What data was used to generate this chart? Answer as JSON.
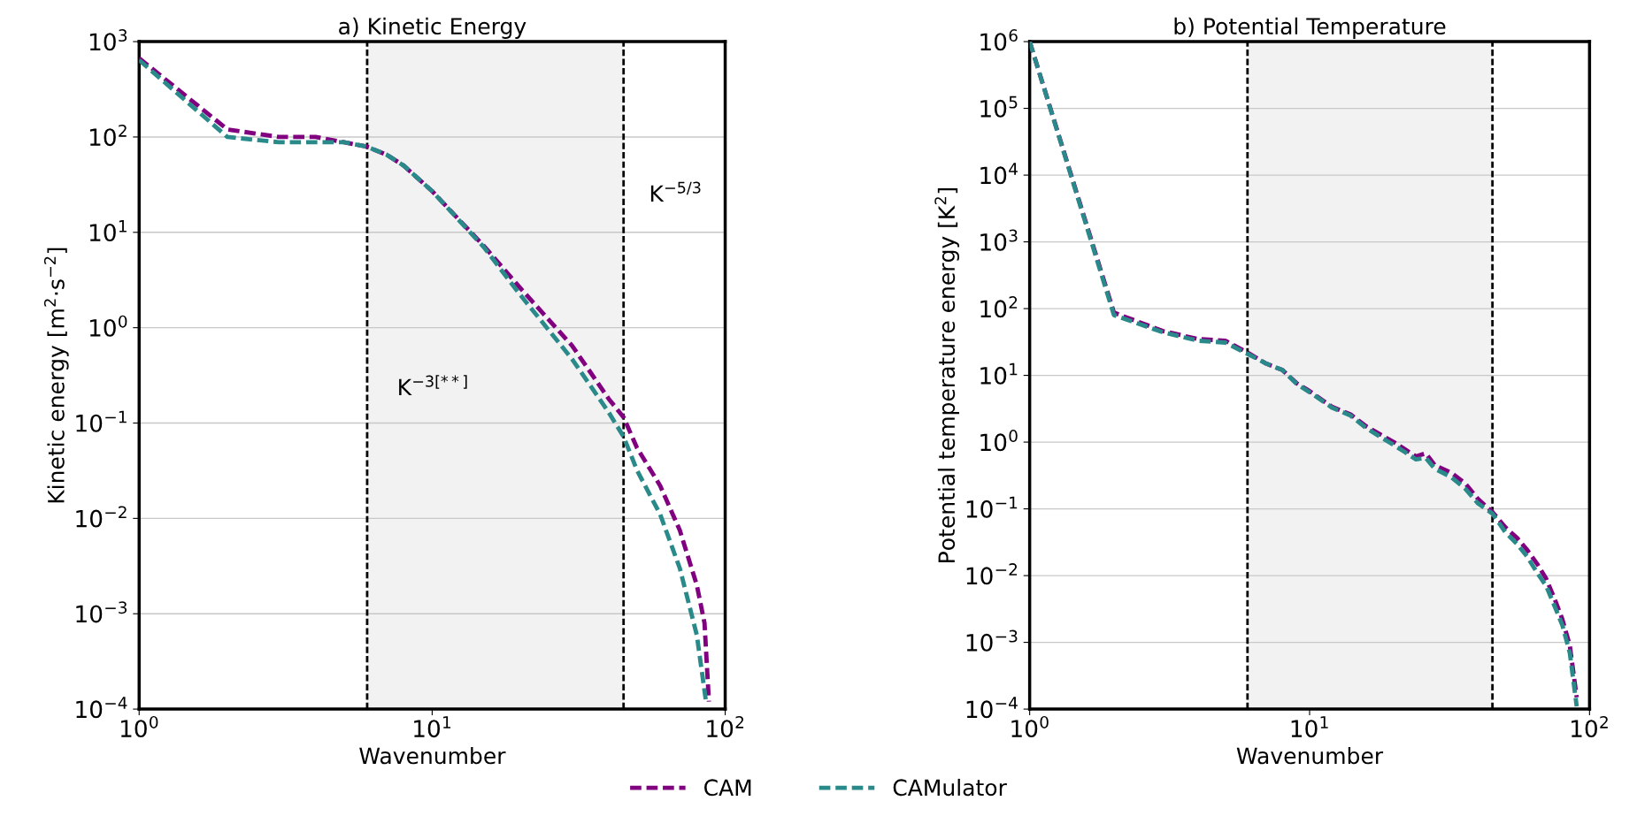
{
  "chart_data": [
    {
      "type": "line",
      "title": "a) Kinetic Energy",
      "xlabel": "Wavenumber",
      "ylabel": "Kinetic energy [m$^{2}$·s$^{−2}$]",
      "log": "xy",
      "grid": "y",
      "legend": "bottom",
      "line_style": "dashed",
      "marker": "none",
      "xlim": [
        1,
        100
      ],
      "xticks": [
        {
          "value": 1,
          "label": "10$^{0}$"
        },
        {
          "value": 10,
          "label": "10$^{1}$"
        },
        {
          "value": 100,
          "label": "10$^{2}$"
        }
      ],
      "ylim": [
        0.0001,
        1000
      ],
      "yticks": [
        {
          "value": 0.0001,
          "label": "10$^{−4}$"
        },
        {
          "value": 0.001,
          "label": "10$^{−3}$"
        },
        {
          "value": 0.01,
          "label": "10$^{−2}$"
        },
        {
          "value": 0.1,
          "label": "10$^{−1}$"
        },
        {
          "value": 1,
          "label": "10$^{0}$"
        },
        {
          "value": 10,
          "label": "10$^{1}$"
        },
        {
          "value": 100,
          "label": "10$^{2}$"
        },
        {
          "value": 1000,
          "label": "10$^{3}$"
        }
      ],
      "series": [
        {
          "name": "CAM",
          "color": "#800080",
          "x": [
            1,
            2,
            3,
            4,
            5,
            6,
            7,
            8,
            10,
            15,
            20,
            30,
            40,
            45,
            50,
            60,
            70,
            80,
            85,
            88
          ],
          "values": [
            670,
            120,
            100,
            100,
            88,
            79,
            65,
            50,
            27,
            7.2,
            2.6,
            0.65,
            0.18,
            0.115,
            0.055,
            0.022,
            0.0075,
            0.002,
            0.0008,
            0.00012
          ]
        },
        {
          "name": "CAMulator",
          "color": "#2a8a8a",
          "x": [
            1,
            2,
            3,
            4,
            5,
            6,
            7,
            8,
            10,
            15,
            20,
            30,
            40,
            45,
            50,
            60,
            70,
            80,
            86
          ],
          "values": [
            640,
            100,
            88,
            88,
            88,
            79,
            65,
            50,
            27,
            7.0,
            2.2,
            0.47,
            0.13,
            0.072,
            0.032,
            0.011,
            0.003,
            0.0006,
            0.00012
          ]
        }
      ],
      "bands": [
        {
          "axis": "x",
          "from": 6,
          "to": 45,
          "color": "#f2f2f2"
        }
      ],
      "ref_lines": [
        {
          "axis": "x",
          "value": 6,
          "color": "#000000",
          "line_style": "dashed"
        },
        {
          "axis": "x",
          "value": 45,
          "color": "#000000",
          "line_style": "dashed"
        }
      ],
      "annotations": [
        "K$^{−3[**]}$",
        "K$^{−5/3}$"
      ]
    },
    {
      "type": "line",
      "title": "b) Potential Temperature",
      "xlabel": "Wavenumber",
      "ylabel": "Potential temperature energy [K$^{2}$]",
      "log": "xy",
      "grid": "y",
      "line_style": "dashed",
      "marker": "none",
      "xlim": [
        1,
        100
      ],
      "xticks": [
        {
          "value": 1,
          "label": "10$^{0}$"
        },
        {
          "value": 10,
          "label": "10$^{1}$"
        },
        {
          "value": 100,
          "label": "10$^{2}$"
        }
      ],
      "ylim": [
        0.0001,
        1000000
      ],
      "yticks": [
        {
          "value": 0.0001,
          "label": "10$^{−4}$"
        },
        {
          "value": 0.001,
          "label": "10$^{−3}$"
        },
        {
          "value": 0.01,
          "label": "10$^{−2}$"
        },
        {
          "value": 0.1,
          "label": "10$^{−1}$"
        },
        {
          "value": 1,
          "label": "10$^{0}$"
        },
        {
          "value": 10,
          "label": "10$^{1}$"
        },
        {
          "value": 100,
          "label": "10$^{2}$"
        },
        {
          "value": 1000,
          "label": "10$^{3}$"
        },
        {
          "value": 10000,
          "label": "10$^{4}$"
        },
        {
          "value": 100000,
          "label": "10$^{5}$"
        },
        {
          "value": 1000000,
          "label": "10$^{6}$"
        }
      ],
      "series": [
        {
          "name": "CAM",
          "color": "#800080",
          "x": [
            1,
            2,
            3,
            4,
            5,
            6,
            7,
            8,
            9,
            10,
            12,
            14,
            16,
            20,
            22,
            24,
            26,
            28,
            32,
            36,
            40,
            45,
            50,
            55,
            60,
            65,
            70,
            75,
            80,
            85,
            90
          ],
          "values": [
            1000000,
            87,
            46,
            35,
            33,
            22,
            15,
            12,
            7.6,
            5.8,
            3.4,
            2.6,
            1.7,
            1.0,
            0.77,
            0.61,
            0.68,
            0.45,
            0.35,
            0.24,
            0.14,
            0.09,
            0.053,
            0.037,
            0.024,
            0.015,
            0.009,
            0.0045,
            0.0022,
            0.0009,
            0.00015
          ]
        },
        {
          "name": "CAMulator",
          "color": "#2a8a8a",
          "x": [
            1,
            2,
            3,
            4,
            5,
            6,
            7,
            8,
            9,
            10,
            12,
            14,
            16,
            20,
            22,
            24,
            26,
            28,
            32,
            36,
            40,
            45,
            50,
            55,
            60,
            65,
            70,
            75,
            80,
            85,
            90
          ],
          "values": [
            1000000,
            80,
            44,
            33,
            31,
            21,
            15,
            12,
            7.4,
            5.6,
            3.3,
            2.5,
            1.6,
            0.9,
            0.7,
            0.55,
            0.58,
            0.4,
            0.3,
            0.2,
            0.12,
            0.085,
            0.045,
            0.03,
            0.019,
            0.011,
            0.007,
            0.0035,
            0.0018,
            0.0007,
            0.00011
          ]
        }
      ],
      "bands": [
        {
          "axis": "x",
          "from": 6,
          "to": 45,
          "color": "#f2f2f2"
        }
      ],
      "ref_lines": [
        {
          "axis": "x",
          "value": 6,
          "color": "#000000",
          "line_style": "dashed"
        },
        {
          "axis": "x",
          "value": 45,
          "color": "#000000",
          "line_style": "dashed"
        }
      ]
    }
  ]
}
